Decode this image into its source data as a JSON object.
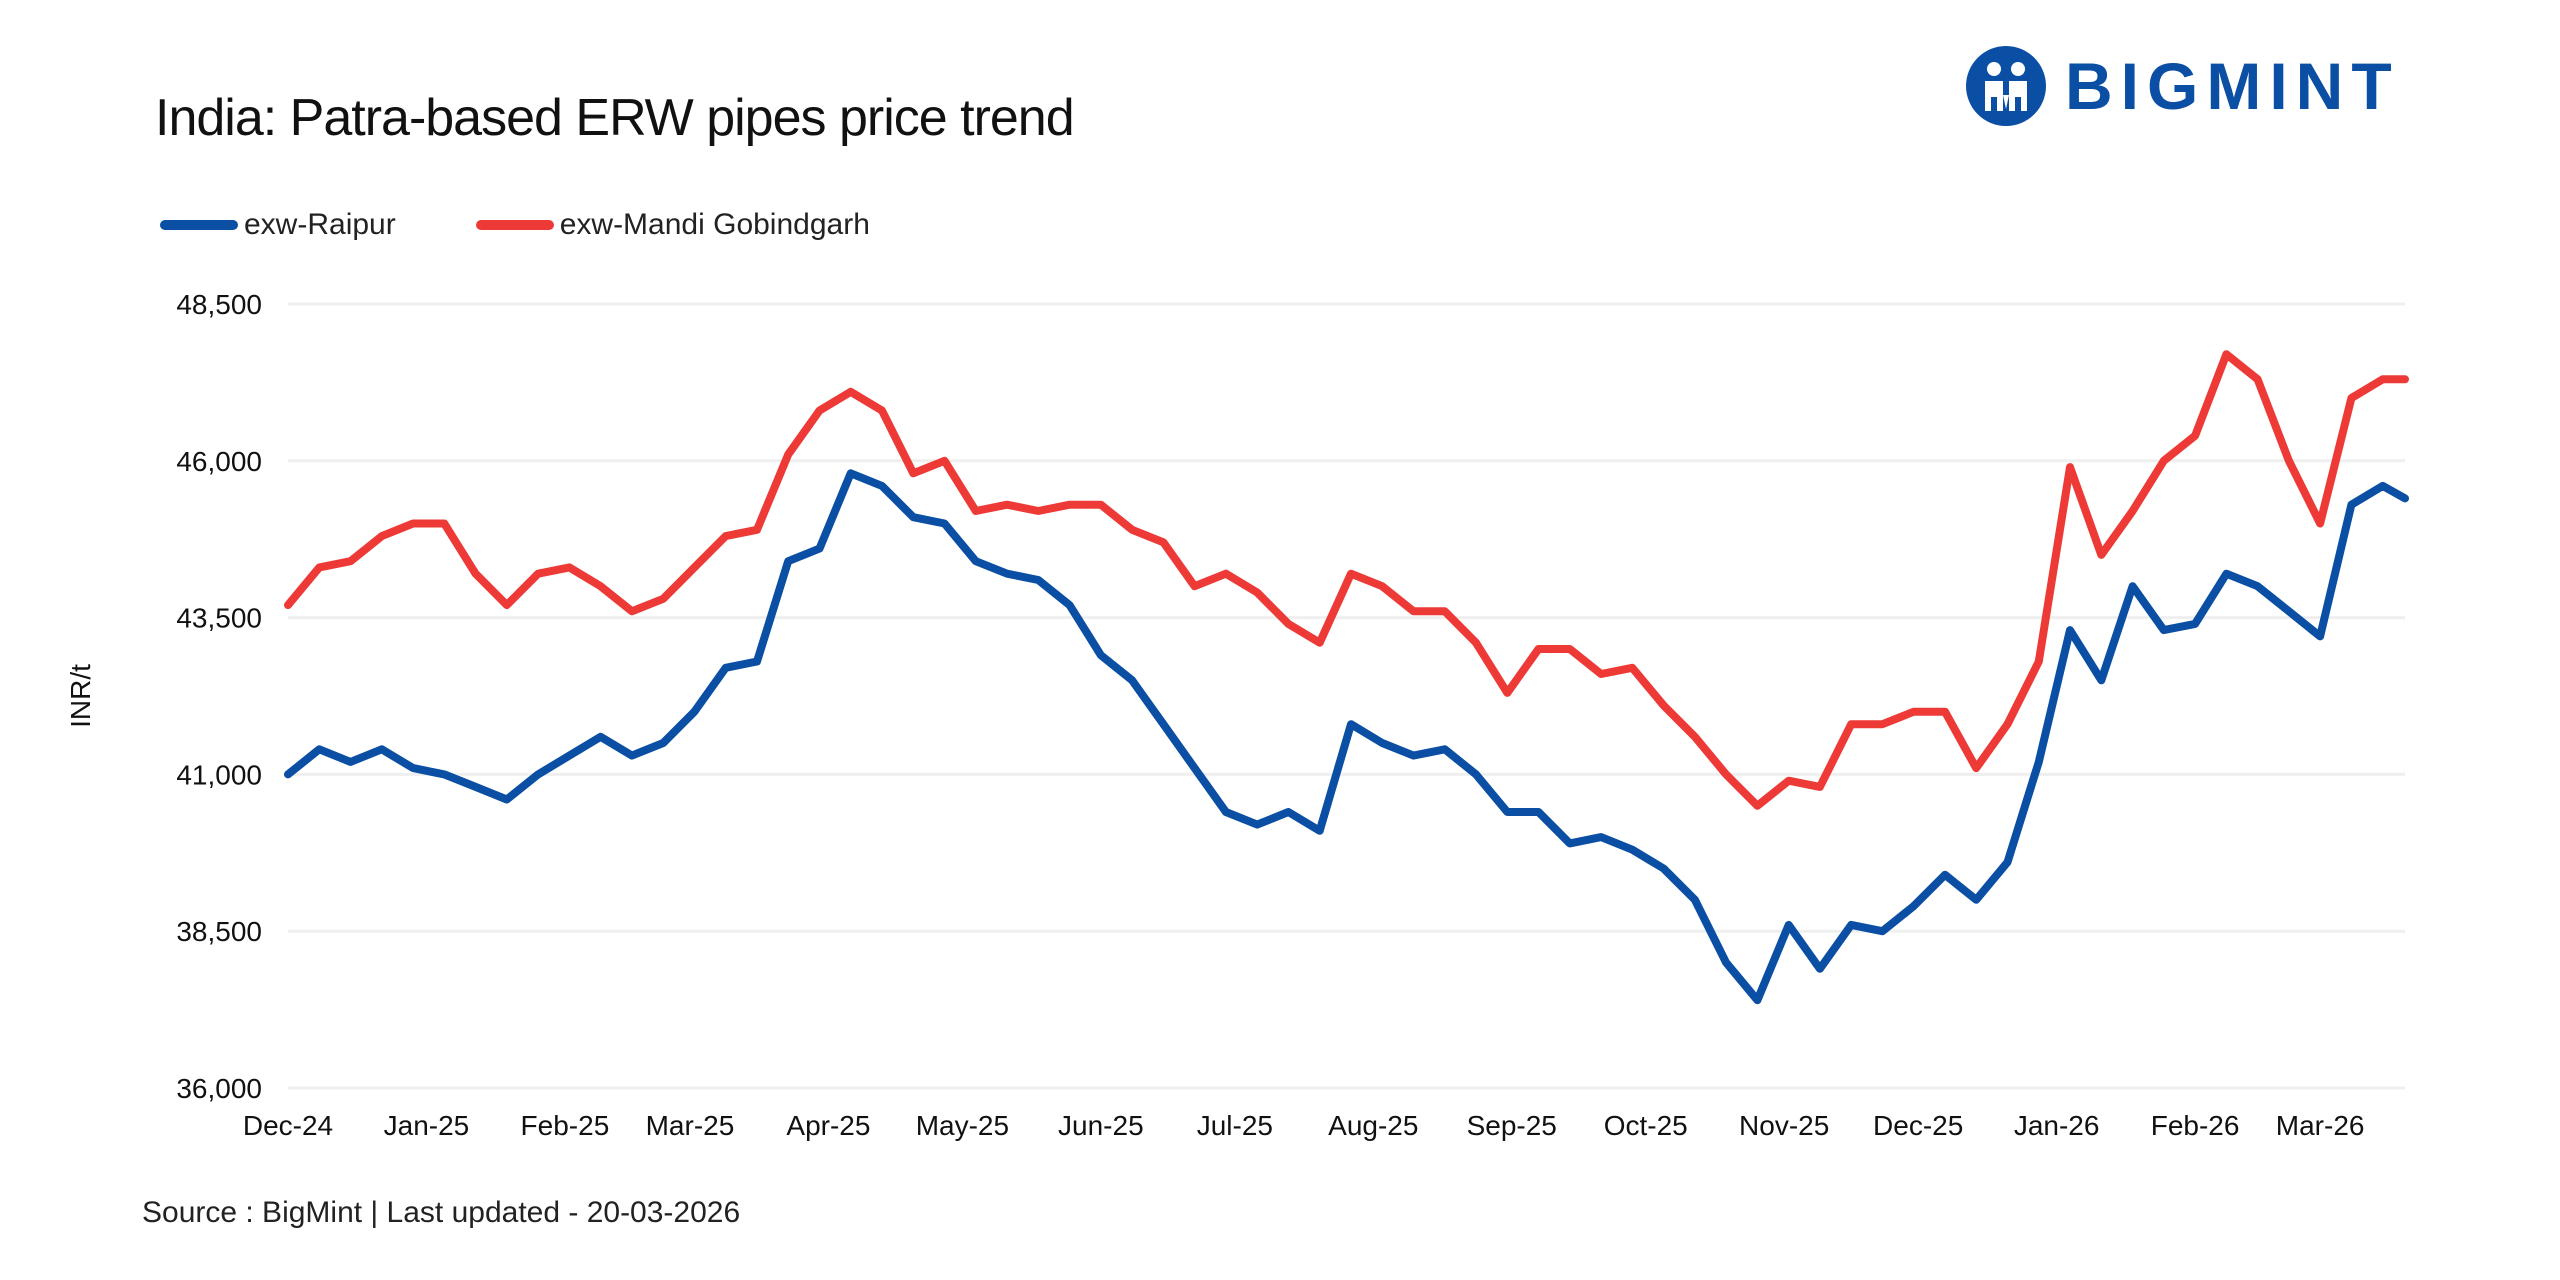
{
  "brand": "BIGMINT",
  "source": "Source : BigMint | Last updated - 20-03-2026",
  "chart_data": {
    "type": "line",
    "title": "India: Patra-based ERW pipes price trend",
    "ylabel": "INR/t",
    "xlabel": "",
    "ylim": [
      36000,
      48500
    ],
    "yticks": [
      36000,
      38500,
      41000,
      43500,
      46000,
      48500
    ],
    "ytick_labels": [
      "36,000",
      "38,500",
      "41,000",
      "43,500",
      "46,000",
      "48,500"
    ],
    "xlim": [
      "2024-12-01",
      "2026-03-20"
    ],
    "xticks": [
      "2024-12-01",
      "2025-01-01",
      "2025-02-01",
      "2025-03-01",
      "2025-04-01",
      "2025-05-01",
      "2025-06-01",
      "2025-07-01",
      "2025-08-01",
      "2025-09-01",
      "2025-10-01",
      "2025-11-01",
      "2025-12-01",
      "2026-01-01",
      "2026-02-01",
      "2026-03-01"
    ],
    "xtick_labels": [
      "Dec-24",
      "Jan-25",
      "Feb-25",
      "Mar-25",
      "Apr-25",
      "May-25",
      "Jun-25",
      "Jul-25",
      "Aug-25",
      "Sep-25",
      "Oct-25",
      "Nov-25",
      "Dec-25",
      "Jan-26",
      "Feb-26",
      "Mar-26"
    ],
    "grid": "horizontal",
    "legend": "top-left",
    "x": [
      "2024-12-01",
      "2024-12-08",
      "2024-12-15",
      "2024-12-22",
      "2024-12-29",
      "2025-01-05",
      "2025-01-12",
      "2025-01-19",
      "2025-01-26",
      "2025-02-02",
      "2025-02-09",
      "2025-02-16",
      "2025-02-23",
      "2025-03-02",
      "2025-03-09",
      "2025-03-16",
      "2025-03-23",
      "2025-03-30",
      "2025-04-06",
      "2025-04-13",
      "2025-04-20",
      "2025-04-27",
      "2025-05-04",
      "2025-05-11",
      "2025-05-18",
      "2025-05-25",
      "2025-06-01",
      "2025-06-08",
      "2025-06-15",
      "2025-06-22",
      "2025-06-29",
      "2025-07-06",
      "2025-07-13",
      "2025-07-20",
      "2025-07-27",
      "2025-08-03",
      "2025-08-10",
      "2025-08-17",
      "2025-08-24",
      "2025-08-31",
      "2025-09-07",
      "2025-09-14",
      "2025-09-21",
      "2025-09-28",
      "2025-10-05",
      "2025-10-12",
      "2025-10-19",
      "2025-10-26",
      "2025-11-02",
      "2025-11-09",
      "2025-11-16",
      "2025-11-23",
      "2025-11-30",
      "2025-12-07",
      "2025-12-14",
      "2025-12-21",
      "2025-12-28",
      "2026-01-04",
      "2026-01-11",
      "2026-01-18",
      "2026-01-25",
      "2026-02-01",
      "2026-02-08",
      "2026-02-15",
      "2026-02-22",
      "2026-03-01",
      "2026-03-08",
      "2026-03-15",
      "2026-03-20"
    ],
    "series": [
      {
        "name": "exw-Raipur",
        "color": "#0a4fa3",
        "values": [
          41000,
          41400,
          41200,
          41400,
          41100,
          41000,
          40800,
          40600,
          41000,
          41300,
          41600,
          41300,
          41500,
          42000,
          42700,
          42800,
          44400,
          44600,
          45800,
          45600,
          45100,
          45000,
          44400,
          44200,
          44100,
          43700,
          42900,
          42500,
          41800,
          41100,
          40400,
          40200,
          40400,
          40100,
          41800,
          41500,
          41300,
          41400,
          41000,
          40400,
          40400,
          39900,
          40000,
          39800,
          39500,
          39000,
          38000,
          37400,
          38600,
          37900,
          38600,
          38500,
          38900,
          39400,
          39000,
          39600,
          41200,
          43300,
          42500,
          44000,
          43300,
          43400,
          44200,
          44000,
          43600,
          43200,
          45300,
          45600,
          45400
        ]
      },
      {
        "name": "exw-Mandi Gobindgarh",
        "color": "#ee3a36",
        "values": [
          43700,
          44300,
          44400,
          44800,
          45000,
          45000,
          44200,
          43700,
          44200,
          44300,
          44000,
          43600,
          43800,
          44300,
          44800,
          44900,
          46100,
          46800,
          47100,
          46800,
          45800,
          46000,
          45200,
          45300,
          45200,
          45300,
          45300,
          44900,
          44700,
          44000,
          44200,
          43900,
          43400,
          43100,
          44200,
          44000,
          43600,
          43600,
          43100,
          42300,
          43000,
          43000,
          42600,
          42700,
          42100,
          41600,
          41000,
          40500,
          40900,
          40800,
          41800,
          41800,
          42000,
          42000,
          41100,
          41800,
          42800,
          45900,
          44500,
          45200,
          46000,
          46400,
          47700,
          47300,
          46000,
          45000,
          47000,
          47300,
          47300
        ]
      }
    ]
  }
}
